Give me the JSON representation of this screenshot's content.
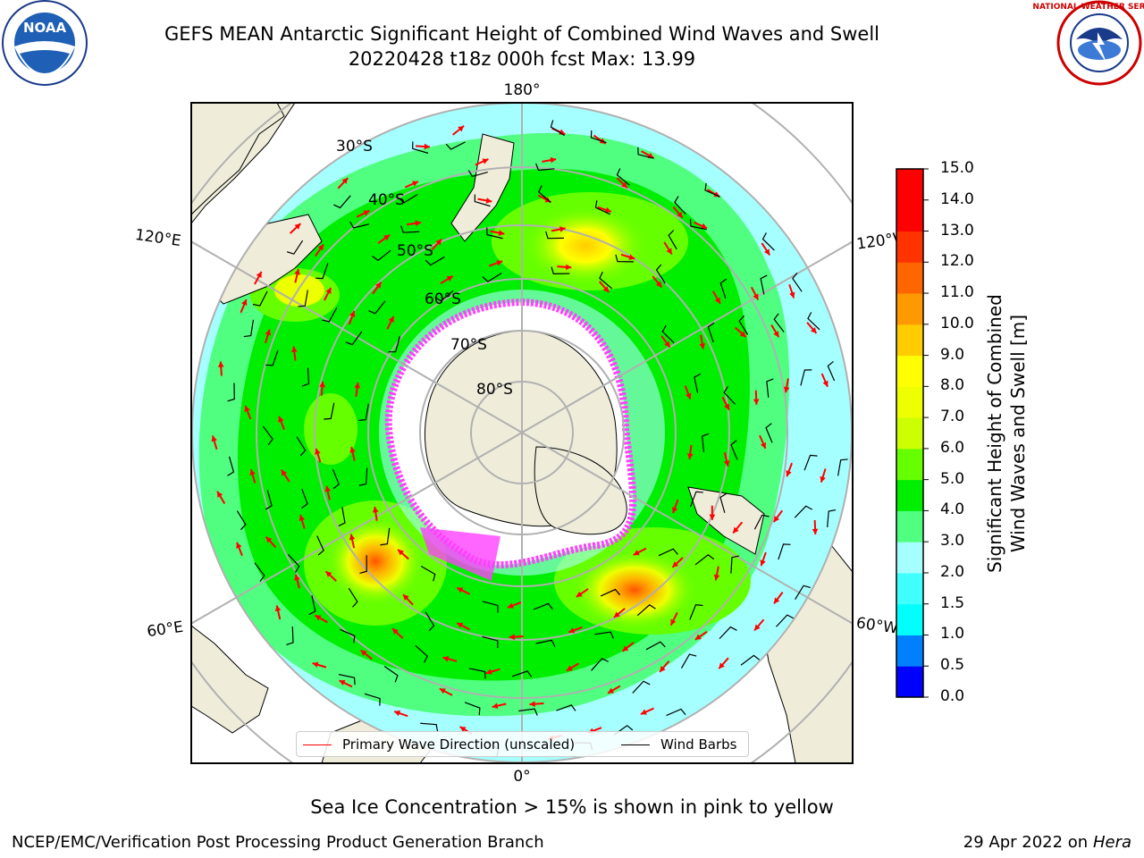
{
  "header": {
    "title": "GEFS MEAN Antarctic Significant Height of Combined Wind Waves and Swell",
    "subtitle": "20220428 t18z 000h fcst   Max: 13.99"
  },
  "map": {
    "projection": "south-polar-stereographic",
    "center": "South Pole",
    "longitude_labels": [
      {
        "name": "lon-label-180",
        "text": "180°"
      },
      {
        "name": "lon-label-120e",
        "text": "120°E"
      },
      {
        "name": "lon-label-120w",
        "text": "120°W"
      },
      {
        "name": "lon-label-60e",
        "text": "60°E"
      },
      {
        "name": "lon-label-60w",
        "text": "60°W"
      },
      {
        "name": "lon-label-0",
        "text": "0°"
      }
    ],
    "latitude_labels": [
      {
        "name": "lat-label-30s",
        "text": "30°S"
      },
      {
        "name": "lat-label-40s",
        "text": "40°S"
      },
      {
        "name": "lat-label-50s",
        "text": "50°S"
      },
      {
        "name": "lat-label-60s",
        "text": "60°S"
      },
      {
        "name": "lat-label-70s",
        "text": "70°S"
      },
      {
        "name": "lat-label-80s",
        "text": "80°S"
      }
    ],
    "colors": {
      "land": "#efedda",
      "ocean_low": "#a6ffff",
      "wave_arrow": "#ff0000",
      "wind_barb": "#000000",
      "sea_ice": "#ff40ff",
      "grid": "#b0b0b0"
    }
  },
  "colorbar": {
    "title_line1": "Significant Height of Combined",
    "title_line2": "Wind Waves and Swell [m]",
    "levels": [
      "0.0",
      "0.5",
      "1.0",
      "1.5",
      "2.0",
      "3.0",
      "4.0",
      "5.0",
      "6.0",
      "7.0",
      "8.0",
      "9.0",
      "10.0",
      "11.0",
      "12.0",
      "13.0",
      "14.0",
      "15.0"
    ],
    "colors": [
      "#0000ff",
      "#0080ff",
      "#00ffff",
      "#40ffff",
      "#a6ffff",
      "#50ff80",
      "#00ee00",
      "#66ff00",
      "#ccff00",
      "#eeff00",
      "#ffff00",
      "#ffcc00",
      "#ff9900",
      "#ff6600",
      "#ff3300",
      "#ff0000",
      "#ff0000"
    ]
  },
  "legend": {
    "primary_wave_label": "Primary Wave Direction (unscaled)",
    "primary_wave_color": "#ff0000",
    "wind_barbs_label": "Wind Barbs",
    "wind_barbs_color": "#000000"
  },
  "caption": "Sea Ice Concentration > 15% is shown in pink to yellow",
  "footer": {
    "left": "NCEP/EMC/Verification Post Processing Product Generation Branch",
    "date_prefix": "29 Apr 2022 on ",
    "machine": "Hera"
  },
  "logos": {
    "noaa_text": "NOAA",
    "nws_text": "NATIONAL WEATHER SERVICE"
  }
}
